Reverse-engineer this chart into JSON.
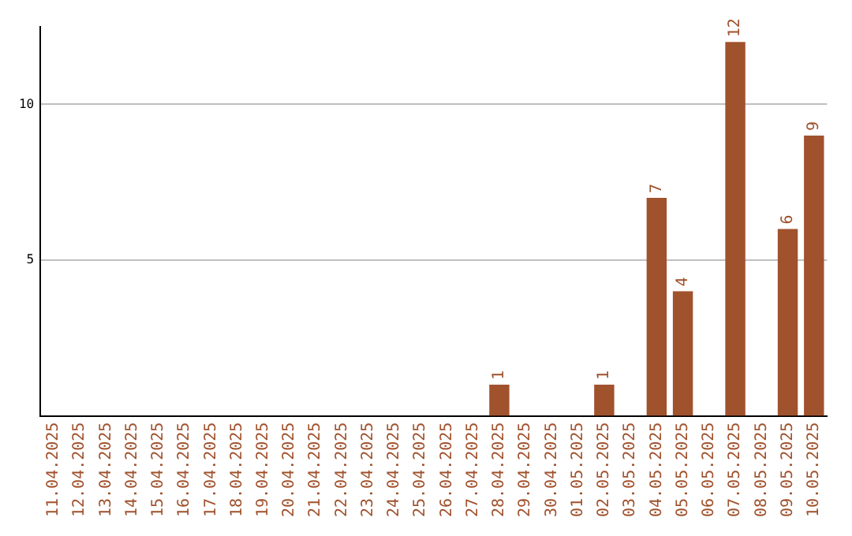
{
  "chart_data": {
    "type": "bar",
    "categories": [
      "11.04.2025",
      "12.04.2025",
      "13.04.2025",
      "14.04.2025",
      "15.04.2025",
      "16.04.2025",
      "17.04.2025",
      "18.04.2025",
      "19.04.2025",
      "20.04.2025",
      "21.04.2025",
      "22.04.2025",
      "23.04.2025",
      "24.04.2025",
      "25.04.2025",
      "26.04.2025",
      "27.04.2025",
      "28.04.2025",
      "29.04.2025",
      "30.04.2025",
      "01.05.2025",
      "02.05.2025",
      "03.05.2025",
      "04.05.2025",
      "05.05.2025",
      "06.05.2025",
      "07.05.2025",
      "08.05.2025",
      "09.05.2025",
      "10.05.2025"
    ],
    "values": [
      0,
      0,
      0,
      0,
      0,
      0,
      0,
      0,
      0,
      0,
      0,
      0,
      0,
      0,
      0,
      0,
      0,
      1,
      0,
      0,
      0,
      1,
      0,
      7,
      4,
      0,
      12,
      0,
      6,
      9
    ],
    "value_labels": [
      null,
      null,
      null,
      null,
      null,
      null,
      null,
      null,
      null,
      null,
      null,
      null,
      null,
      null,
      null,
      null,
      null,
      "1",
      null,
      null,
      null,
      "1",
      null,
      "7",
      "4",
      null,
      "12",
      null,
      "6",
      "9"
    ],
    "color": "#a0522d",
    "ylim": [
      0,
      12.5
    ],
    "yticks": [
      5,
      10
    ],
    "grid": "y",
    "legend": false
  }
}
